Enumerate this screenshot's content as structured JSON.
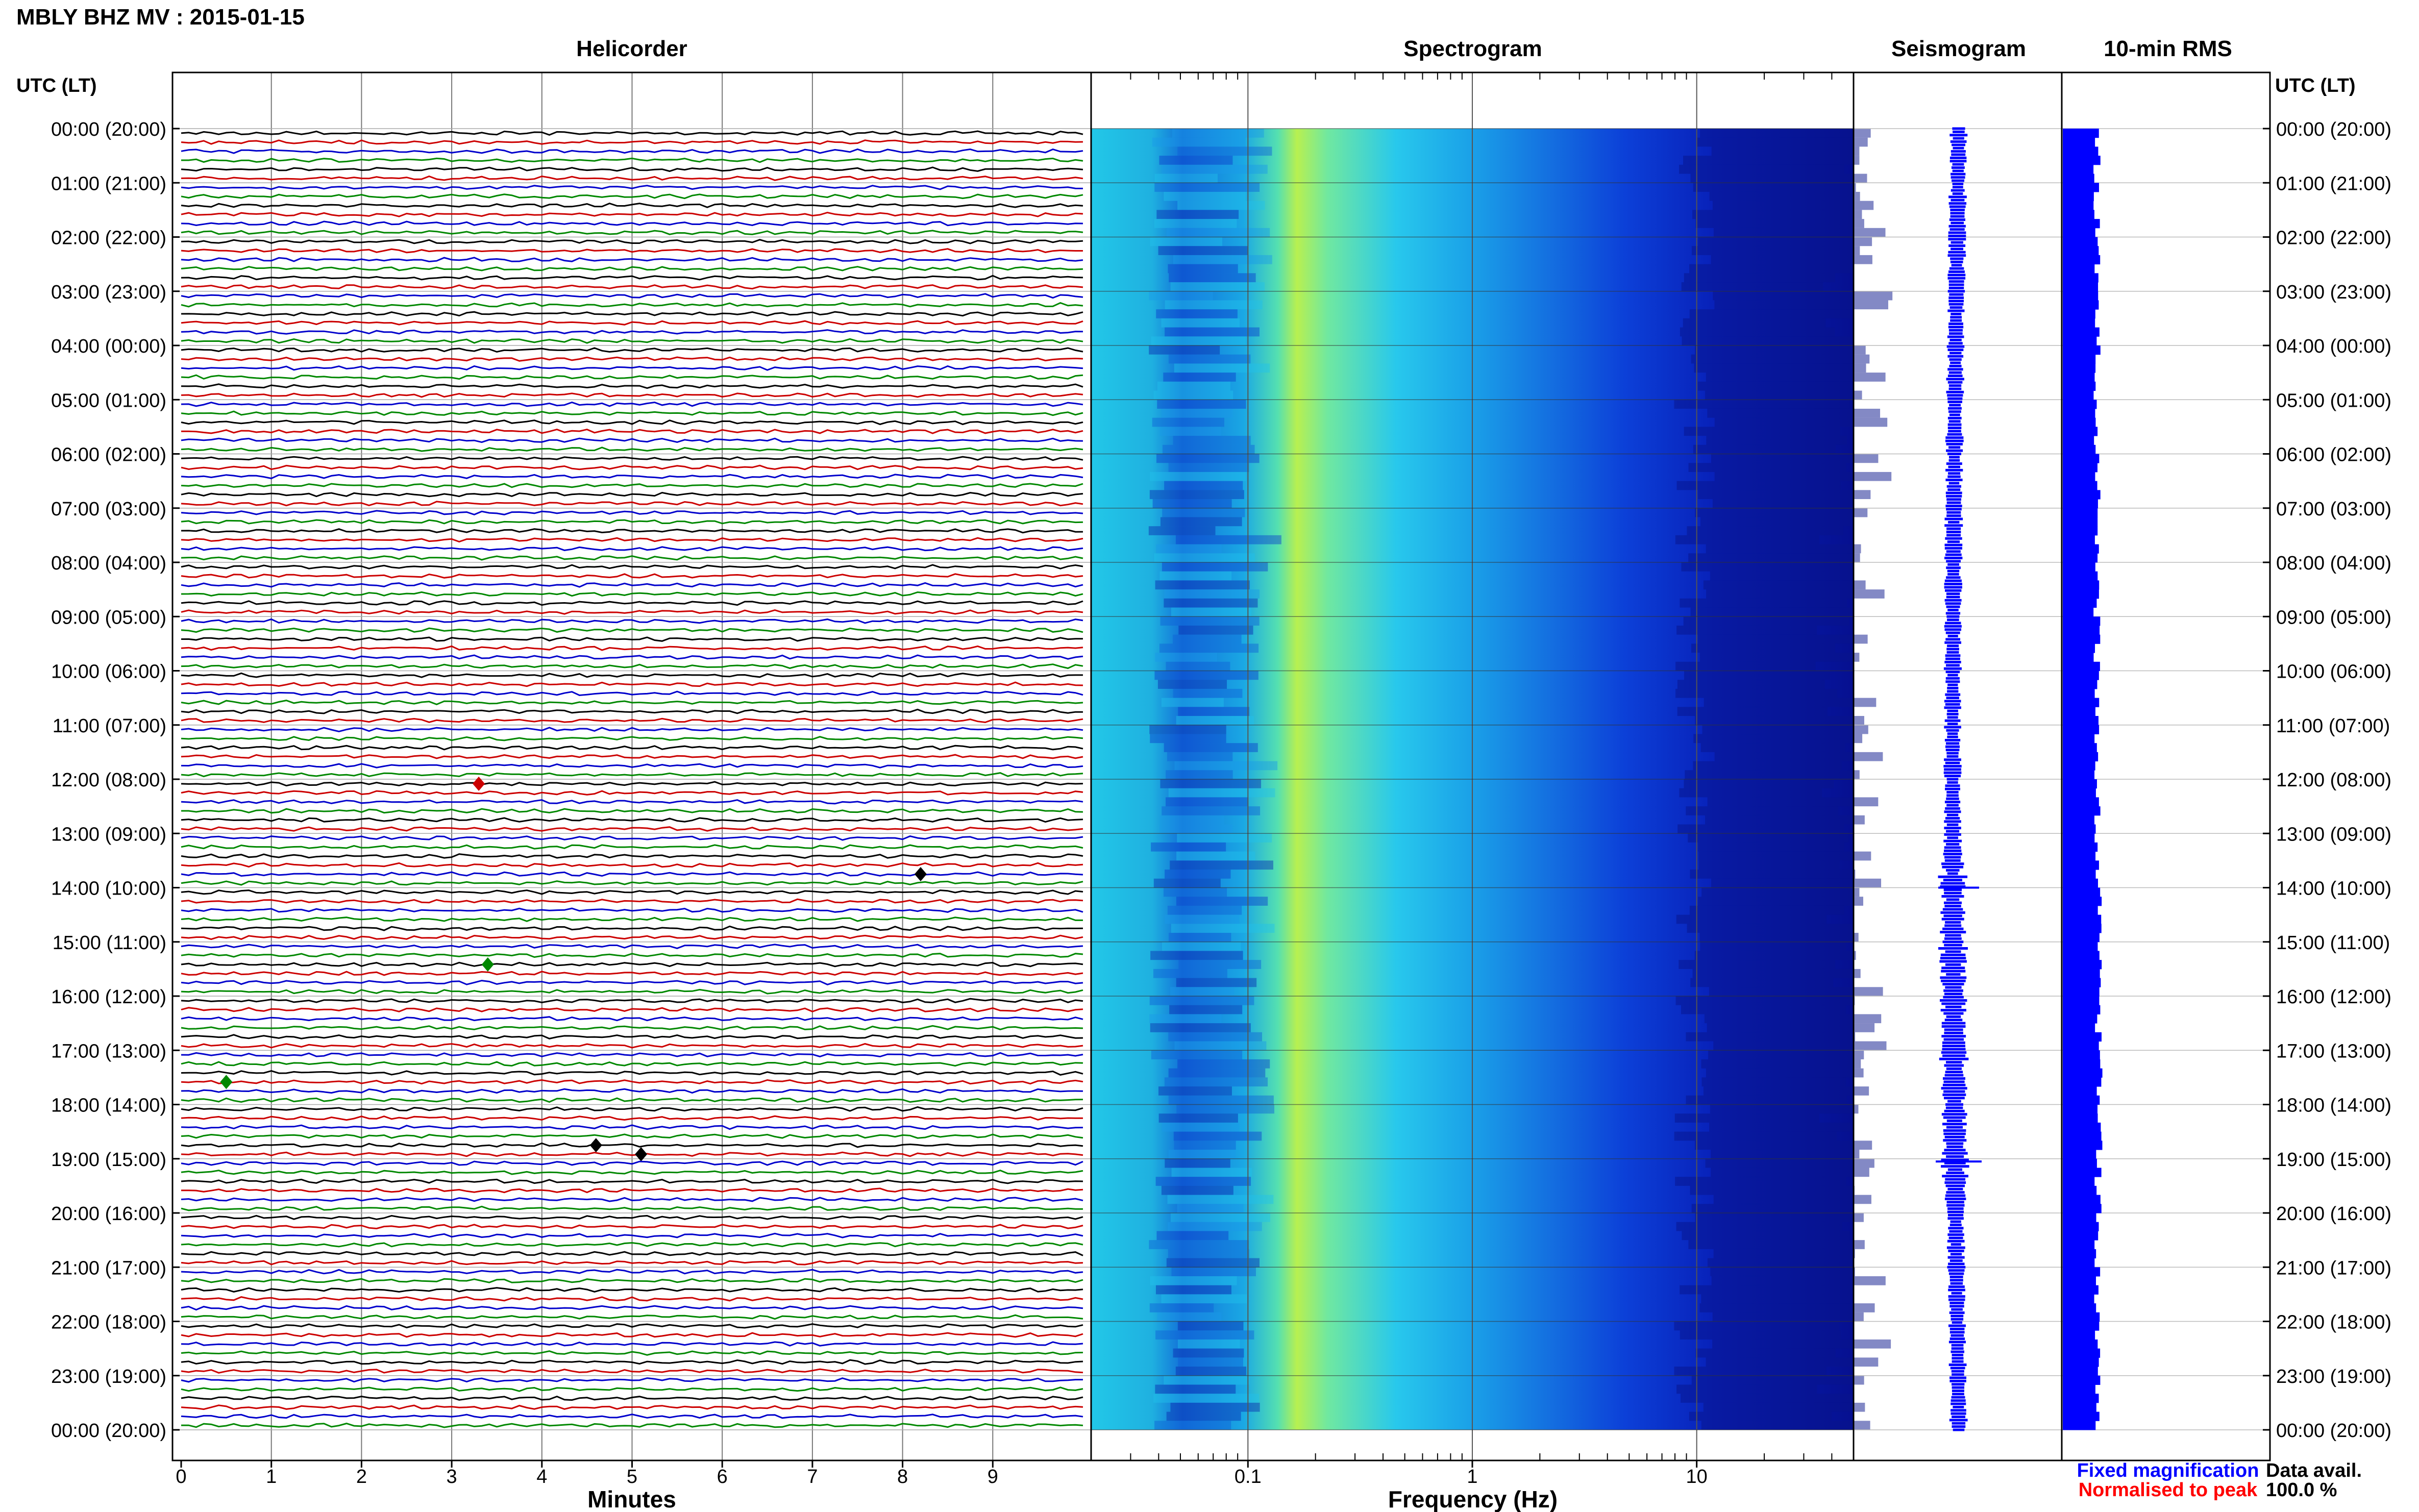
{
  "header": {
    "title": "MBLY BHZ MV : 2015-01-15"
  },
  "panels": {
    "helicorder": "Helicorder",
    "spectrogram": "Spectrogram",
    "seismogram": "Seismogram",
    "rms": "10-min RMS"
  },
  "axis": {
    "left_header": "UTC (LT)",
    "right_header": "UTC (LT)",
    "minutes_label": "Minutes",
    "freq_label": "Frequency (Hz)",
    "minute_ticks": [
      "0",
      "1",
      "2",
      "3",
      "4",
      "5",
      "6",
      "7",
      "8",
      "9"
    ],
    "freq_ticks": [
      "0.1",
      "1",
      "10"
    ],
    "time_ticks": [
      "00:00 (20:00)",
      "01:00 (21:00)",
      "02:00 (22:00)",
      "03:00 (23:00)",
      "04:00 (00:00)",
      "05:00 (01:00)",
      "06:00 (02:00)",
      "07:00 (03:00)",
      "08:00 (04:00)",
      "09:00 (05:00)",
      "10:00 (06:00)",
      "11:00 (07:00)",
      "12:00 (08:00)",
      "13:00 (09:00)",
      "14:00 (10:00)",
      "15:00 (11:00)",
      "16:00 (12:00)",
      "17:00 (13:00)",
      "18:00 (14:00)",
      "19:00 (15:00)",
      "20:00 (16:00)",
      "21:00 (17:00)",
      "22:00 (18:00)",
      "23:00 (19:00)",
      "00:00 (20:00)"
    ]
  },
  "legend": {
    "fixed": "Fixed magnification",
    "normalised": "Normalised to peak",
    "fixed_color": "#0000ff",
    "normalised_color": "#ff0000"
  },
  "data_avail": {
    "label": "Data avail.",
    "value": "100.0 %"
  },
  "colors": {
    "trace_cycle": [
      "#000000",
      "#cc0000",
      "#0000cc",
      "#008800"
    ],
    "rms_bar": "#0000ff",
    "seismogram": "#0000ff"
  },
  "chart_data": {
    "type": "heatmap",
    "title": "MBLY BHZ MV : 2015-01-15",
    "helicorder": {
      "x_label": "Minutes",
      "x_range": [
        0,
        10
      ],
      "rows": 144,
      "row_minutes": 10,
      "start_utc": "00:00",
      "end_utc": "00:00",
      "trace_color_cycle": [
        "black",
        "red",
        "blue",
        "green"
      ]
    },
    "spectrogram": {
      "x_label": "Frequency (Hz)",
      "x_scale": "log",
      "x_range": [
        0.02,
        50
      ],
      "peak_band_hz": [
        0.15,
        0.3
      ],
      "colormap": "jet"
    },
    "seismogram": {
      "color": "blue",
      "notable_events_utc": [
        "14:00",
        "19:00"
      ]
    },
    "rms_10min": {
      "color": "blue",
      "bins": 144
    },
    "data_available_percent": 100.0
  }
}
